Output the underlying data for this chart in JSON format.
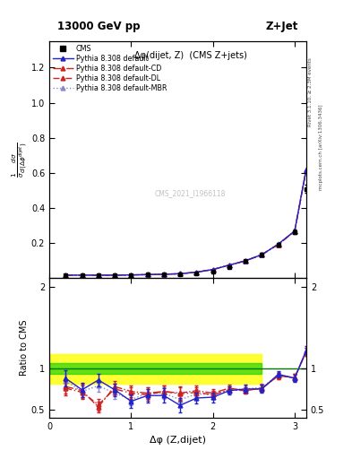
{
  "title_left": "13000 GeV pp",
  "title_right": "Z+Jet",
  "plot_title": "Δφ(dijet, Z)  (CMS Z+jets)",
  "xlabel": "Δφ (Z,dijet)",
  "ylabel_main": "$\\frac{1}{\\sigma}\\frac{d\\sigma}{d(\\Delta\\phi^{dijet})}$",
  "ylabel_ratio": "Ratio to CMS",
  "right_label_top": "Rivet 3.1.10, ≥ 2.3M events",
  "right_label_bottom": "mcplots.cern.ch [arXiv:1306.3436]",
  "watermark": "CMS_2021_I1966118",
  "cms_x": [
    0.2,
    0.4,
    0.6,
    0.8,
    1.0,
    1.2,
    1.4,
    1.6,
    1.8,
    2.0,
    2.2,
    2.4,
    2.6,
    2.8,
    3.0,
    3.14
  ],
  "cms_y": [
    0.018,
    0.018,
    0.018,
    0.018,
    0.02,
    0.022,
    0.022,
    0.025,
    0.03,
    0.04,
    0.065,
    0.1,
    0.135,
    0.19,
    0.265,
    0.51
  ],
  "cms_yerr": [
    0.002,
    0.002,
    0.002,
    0.002,
    0.002,
    0.002,
    0.002,
    0.002,
    0.003,
    0.004,
    0.005,
    0.006,
    0.008,
    0.01,
    0.015,
    0.025
  ],
  "py_default_x": [
    0.2,
    0.4,
    0.6,
    0.8,
    1.0,
    1.2,
    1.4,
    1.6,
    1.8,
    2.0,
    2.2,
    2.4,
    2.6,
    2.8,
    3.0,
    3.14
  ],
  "py_default_y": [
    0.018,
    0.018,
    0.018,
    0.018,
    0.019,
    0.021,
    0.023,
    0.026,
    0.035,
    0.05,
    0.075,
    0.1,
    0.135,
    0.195,
    0.27,
    0.62
  ],
  "py_cd_y": [
    0.018,
    0.018,
    0.018,
    0.018,
    0.019,
    0.021,
    0.023,
    0.026,
    0.035,
    0.05,
    0.075,
    0.1,
    0.135,
    0.193,
    0.268,
    0.615
  ],
  "py_dl_y": [
    0.018,
    0.018,
    0.018,
    0.018,
    0.019,
    0.021,
    0.023,
    0.026,
    0.035,
    0.05,
    0.075,
    0.1,
    0.135,
    0.193,
    0.268,
    0.615
  ],
  "py_mbr_y": [
    0.018,
    0.018,
    0.018,
    0.018,
    0.019,
    0.021,
    0.023,
    0.026,
    0.035,
    0.05,
    0.075,
    0.1,
    0.135,
    0.193,
    0.268,
    0.615
  ],
  "ratio_default": [
    0.88,
    0.74,
    0.86,
    0.74,
    0.6,
    0.67,
    0.67,
    0.55,
    0.64,
    0.65,
    0.73,
    0.75,
    0.75,
    0.93,
    0.88,
    1.22
  ],
  "ratio_cd": [
    0.78,
    0.73,
    0.53,
    0.78,
    0.72,
    0.7,
    0.72,
    0.7,
    0.73,
    0.7,
    0.76,
    0.73,
    0.76,
    0.91,
    0.89,
    1.2
  ],
  "ratio_dl": [
    0.76,
    0.71,
    0.56,
    0.75,
    0.7,
    0.68,
    0.72,
    0.69,
    0.71,
    0.68,
    0.74,
    0.73,
    0.76,
    0.91,
    0.89,
    1.2
  ],
  "ratio_mbr": [
    0.85,
    0.72,
    0.79,
    0.7,
    0.62,
    0.7,
    0.7,
    0.62,
    0.69,
    0.68,
    0.74,
    0.75,
    0.77,
    0.92,
    0.89,
    1.2
  ],
  "ratio_yerr_default": [
    0.1,
    0.09,
    0.08,
    0.08,
    0.08,
    0.08,
    0.09,
    0.09,
    0.07,
    0.06,
    0.05,
    0.05,
    0.05,
    0.04,
    0.04,
    0.05
  ],
  "ratio_yerr_cd": [
    0.09,
    0.08,
    0.07,
    0.07,
    0.07,
    0.07,
    0.07,
    0.08,
    0.06,
    0.05,
    0.04,
    0.04,
    0.04,
    0.04,
    0.04,
    0.05
  ],
  "ratio_yerr_dl": [
    0.09,
    0.08,
    0.07,
    0.07,
    0.07,
    0.07,
    0.07,
    0.08,
    0.06,
    0.05,
    0.04,
    0.04,
    0.04,
    0.04,
    0.04,
    0.05
  ],
  "ratio_yerr_mbr": [
    0.09,
    0.08,
    0.07,
    0.07,
    0.07,
    0.07,
    0.07,
    0.08,
    0.06,
    0.05,
    0.04,
    0.04,
    0.04,
    0.04,
    0.04,
    0.05
  ],
  "yellow_band_low": 0.82,
  "yellow_band_high": 1.18,
  "green_band_low": 0.93,
  "green_band_high": 1.07,
  "yellow_band_x_end": 2.6,
  "color_default": "#2222cc",
  "color_cd": "#cc2222",
  "color_dl": "#cc2222",
  "color_mbr": "#8888cc",
  "color_cms": "#000000",
  "xlim": [
    0.0,
    3.14159
  ],
  "ylim_main": [
    0.0,
    1.35
  ],
  "ylim_ratio": [
    0.4,
    2.1
  ],
  "yticks_main": [
    0.2,
    0.4,
    0.6,
    0.8,
    1.0,
    1.2
  ],
  "yticks_ratio": [
    0.5,
    1.0,
    2.0
  ]
}
